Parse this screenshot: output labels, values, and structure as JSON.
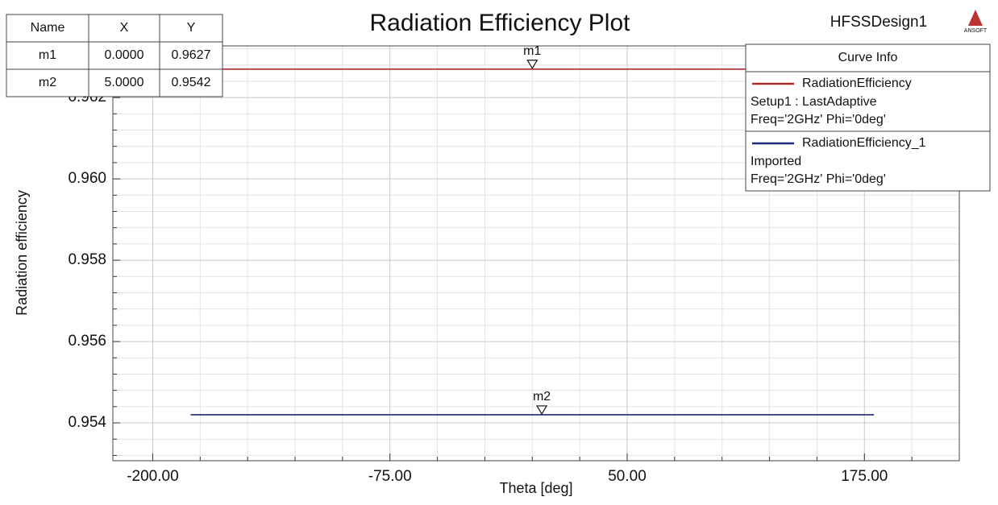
{
  "chart_data": {
    "type": "line",
    "title": "Radiation Efficiency Plot",
    "design_name": "HFSSDesign1",
    "logo": "ANSOFT",
    "xlabel": "Theta [deg]",
    "ylabel": "Radiation efficiency",
    "x": [
      -180,
      180
    ],
    "series": [
      {
        "name": "RadiationEfficiency",
        "color": "#b22a2a",
        "values": [
          0.9627,
          0.9627
        ],
        "description": [
          "Setup1 : LastAdaptive",
          "Freq='2GHz' Phi='0deg'"
        ]
      },
      {
        "name": "RadiationEfficiency_1",
        "color": "#1f2a78",
        "values": [
          0.9542,
          0.9542
        ],
        "description": [
          "Imported",
          "Freq='2GHz' Phi='0deg'"
        ]
      }
    ],
    "legend_title": "Curve Info",
    "legend": "upper right",
    "xlim": [
      -221,
      225
    ],
    "ylim": [
      0.95307,
      0.96327
    ],
    "xticks": [
      {
        "value": -200,
        "label": "-200.00"
      },
      {
        "value": -75,
        "label": "-75.00"
      },
      {
        "value": 50,
        "label": "50.00"
      },
      {
        "value": 175,
        "label": "175.00"
      }
    ],
    "yticks": [
      0.954,
      0.956,
      0.958,
      {
        "value": 0.96,
        "label": "0.960"
      },
      0.962
    ],
    "grid": true,
    "markers": {
      "header": [
        "Name",
        "X",
        "Y"
      ],
      "names": [
        "m1",
        "m2"
      ],
      "x": [
        0,
        5
      ],
      "y": [
        0.9627,
        0.9542
      ],
      "x_labels": [
        "0.0000",
        "5.0000"
      ],
      "y_labels": [
        "0.9627",
        "0.9542"
      ],
      "series": [
        0,
        1
      ]
    }
  }
}
